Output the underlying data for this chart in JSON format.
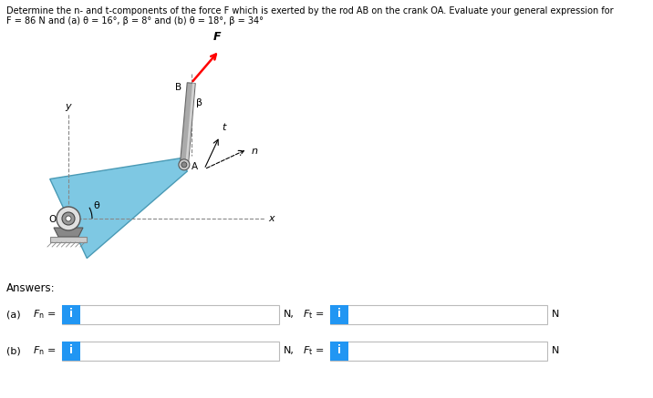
{
  "title_line1": "Determine the n- and t-components of the force F which is exerted by the rod AB on the crank OA. Evaluate your general expression for",
  "title_line2": "F = 86 N and (a) θ = 16°, β = 8° and (b) θ = 18°, β = 34°",
  "answers_label": "Answers:",
  "info_btn_color": "#2196F3",
  "info_btn_text": "i",
  "bg_color": "#ffffff",
  "crank_fill": "#7ec8e3",
  "box_border": "#bbbbbb"
}
